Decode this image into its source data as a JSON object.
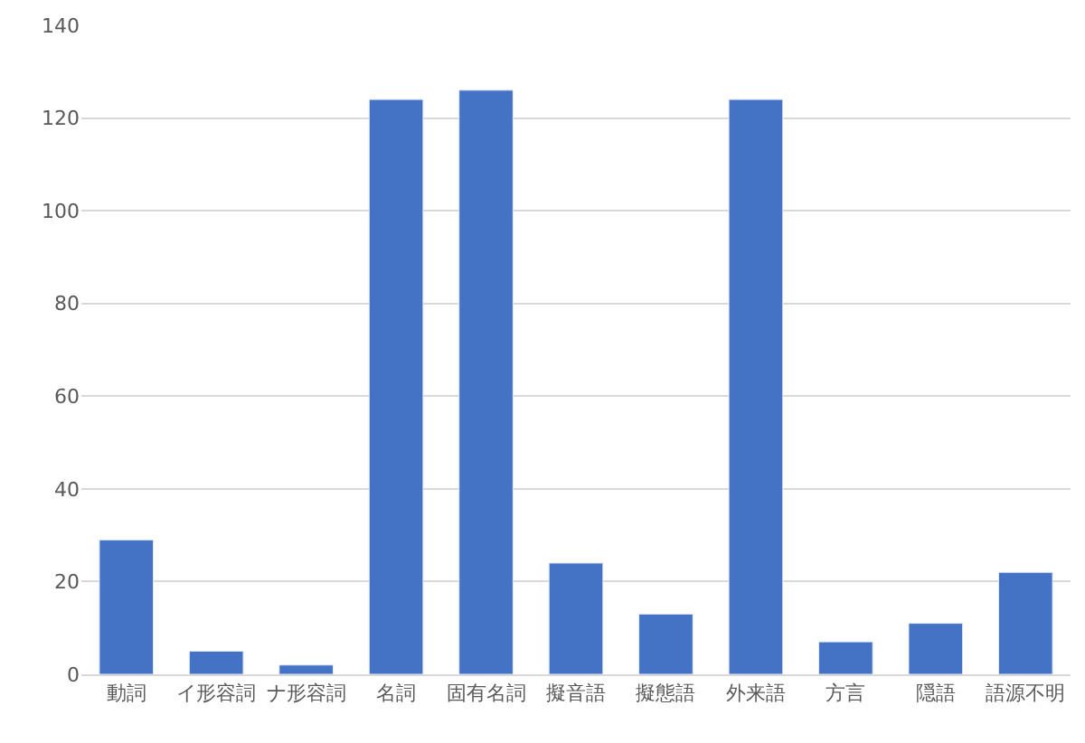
{
  "chart_data": {
    "type": "bar",
    "categories": [
      "動詞",
      "イ形容詞",
      "ナ形容詞",
      "名詞",
      "固有名詞",
      "擬音語",
      "擬態語",
      "外来語",
      "方言",
      "隠語",
      "語源不明"
    ],
    "values": [
      29,
      5,
      2,
      124,
      126,
      24,
      13,
      124,
      7,
      11,
      22
    ],
    "color": "#4472c4",
    "ylim": [
      0,
      140
    ],
    "yticks": [
      0,
      20,
      40,
      60,
      80,
      100,
      120,
      140
    ],
    "grid": "y",
    "legend": false
  }
}
